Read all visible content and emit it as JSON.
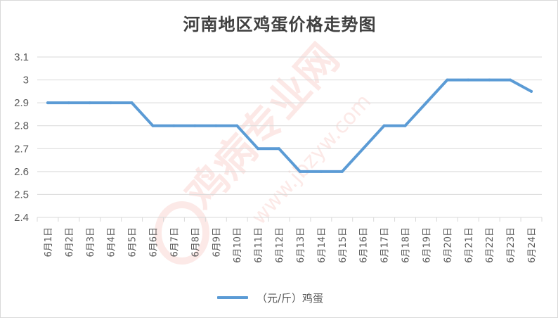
{
  "chart_data": {
    "type": "line",
    "title": "河南地区鸡蛋价格走势图",
    "xlabel": "",
    "ylabel": "",
    "categories": [
      "6月1日",
      "6月2日",
      "6月3日",
      "6月4日",
      "6月5日",
      "6月6日",
      "6月7日",
      "6月8日",
      "6月9日",
      "6月10日",
      "6月11日",
      "6月12日",
      "6月13日",
      "6月14日",
      "6月15日",
      "6月16日",
      "6月17日",
      "6月18日",
      "6月19日",
      "6月20日",
      "6月21日",
      "6月22日",
      "6月23日",
      "6月24日"
    ],
    "series": [
      {
        "name": "（元/斤）鸡蛋",
        "values": [
          2.9,
          2.9,
          2.9,
          2.9,
          2.9,
          2.8,
          2.8,
          2.8,
          2.8,
          2.8,
          2.7,
          2.7,
          2.6,
          2.6,
          2.6,
          2.7,
          2.8,
          2.8,
          2.9,
          3.0,
          3.0,
          3.0,
          3.0,
          2.95
        ]
      }
    ],
    "ylim": [
      2.4,
      3.1
    ],
    "yticks": [
      "2.4",
      "2.5",
      "2.6",
      "2.7",
      "2.8",
      "2.9",
      "3",
      "3.1"
    ],
    "grid": true,
    "legend_position": "bottom",
    "line_color": "#5b9bd5",
    "grid_color": "#d9d9d9",
    "watermark": [
      "鸡病专业网",
      "www.jbzyw.com"
    ]
  }
}
